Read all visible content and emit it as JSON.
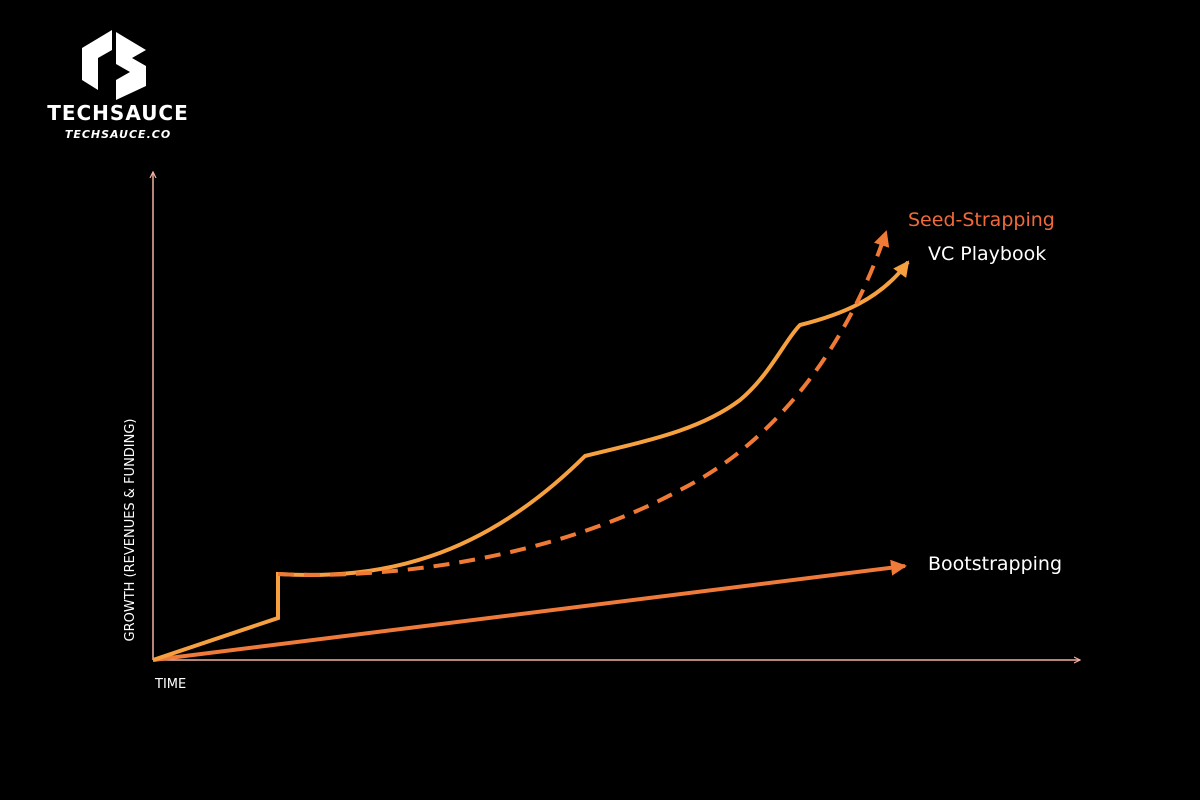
{
  "logo": {
    "name": "TECHSAUCE",
    "url": "TECHSAUCE.CO"
  },
  "axes": {
    "y_label": "GROWTH (REVENUES & FUNDING)",
    "x_label": "TIME"
  },
  "curves": [
    {
      "label": "Seed-Strapping"
    },
    {
      "label": "VC Playbook"
    },
    {
      "label": "Bootstrapping"
    }
  ]
}
